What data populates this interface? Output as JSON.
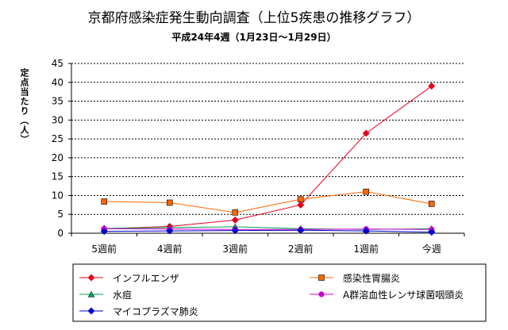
{
  "chart_data": {
    "type": "line",
    "title": "京都府感染症発生動向調査（上位5疾患の推移グラフ）",
    "subtitle": "平成24年4週（1月23日〜1月29日）",
    "xlabel": "",
    "ylabel": "定点当たり（人）",
    "categories": [
      "5週前",
      "4週前",
      "3週前",
      "2週前",
      "1週前",
      "今週"
    ],
    "ylim": [
      0,
      45
    ],
    "yticks": [
      0,
      5,
      10,
      15,
      20,
      25,
      30,
      35,
      40,
      45
    ],
    "grid": true,
    "legend_position": "bottom",
    "series": [
      {
        "name": "インフルエンザ",
        "color": "#e8001c",
        "marker": "diamond",
        "values": [
          1.2,
          1.8,
          3.5,
          7.5,
          26.5,
          39.0
        ]
      },
      {
        "name": "感染性胃腸炎",
        "color": "#ff6600",
        "marker": "square",
        "values": [
          8.4,
          8.1,
          5.5,
          9.0,
          11.0,
          7.8
        ]
      },
      {
        "name": "水痘",
        "color": "#00a651",
        "marker": "triangle",
        "values": [
          1.3,
          1.5,
          1.7,
          1.2,
          1.0,
          1.2
        ]
      },
      {
        "name": "A群溶血性レンサ球菌咽頭炎",
        "color": "#cc00cc",
        "marker": "circle",
        "values": [
          1.2,
          1.1,
          1.0,
          1.0,
          1.1,
          1.0
        ]
      },
      {
        "name": "マイコプラズマ肺炎",
        "color": "#0000cc",
        "marker": "diamond",
        "values": [
          0.5,
          0.6,
          0.7,
          0.8,
          0.6,
          0.3
        ]
      }
    ]
  }
}
